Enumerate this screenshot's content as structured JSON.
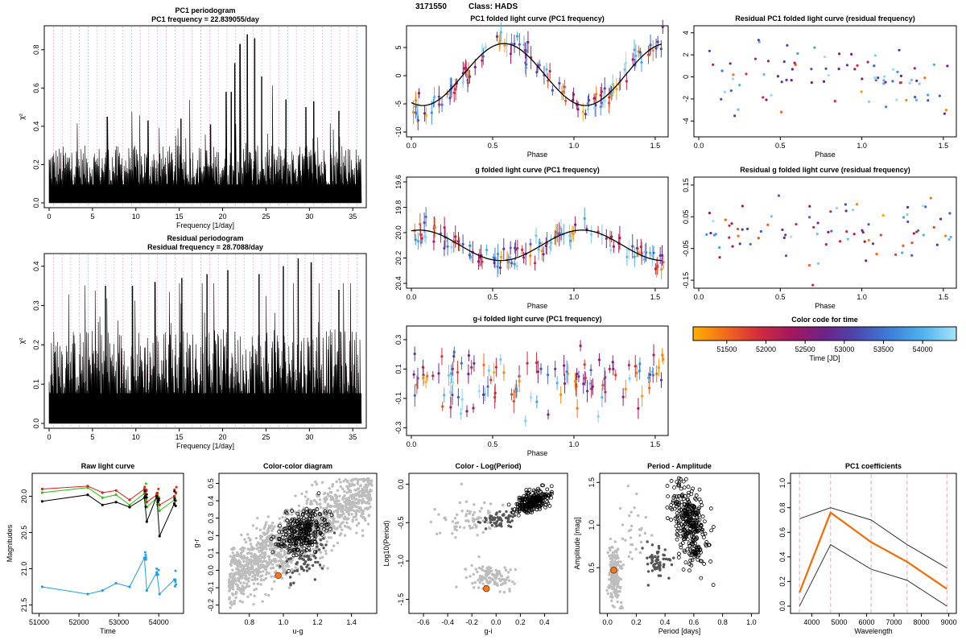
{
  "header": {
    "object_id": "3171550",
    "class_label": "Class: HADS"
  },
  "colors": {
    "time_gradient": [
      "#ffb000",
      "#f26a1b",
      "#d22c3c",
      "#a31760",
      "#6e2288",
      "#4a4ab0",
      "#3d7fd9",
      "#4fb4ee",
      "#a6e3fa"
    ],
    "gray_light": "#bdbdbd",
    "gray_dark": "#555555",
    "highlight": "#ff7a1a",
    "orange_line": "#ef6c00",
    "pink_dash": "#f2a6b8"
  },
  "chart_data": [
    {
      "id": "pc1_periodogram",
      "type": "bar",
      "title": "PC1 periodogram",
      "subtitle": "PC1 frequency = 22.839055/day",
      "xlabel": "Frequency [1/day]",
      "ylabel": "χ²",
      "xlim": [
        0,
        36
      ],
      "ylim": [
        0,
        0.9
      ],
      "xticks": [
        "0",
        "5",
        "10",
        "15",
        "20",
        "25",
        "30",
        "35"
      ],
      "yticks": [
        "0.0",
        "0.2",
        "0.4",
        "0.6",
        "0.8"
      ],
      "peaks": [
        [
          20.4,
          0.58
        ],
        [
          21.0,
          0.58
        ],
        [
          21.4,
          0.73
        ],
        [
          22.0,
          0.83
        ],
        [
          22.84,
          0.88
        ],
        [
          23.7,
          0.86
        ],
        [
          24.5,
          0.66
        ],
        [
          18.6,
          0.41
        ],
        [
          6.7,
          0.45
        ],
        [
          11.4,
          0.43
        ],
        [
          15.2,
          0.44
        ],
        [
          27.3,
          0.54
        ],
        [
          30.5,
          0.53
        ],
        [
          33.4,
          0.48
        ],
        [
          29.6,
          0.5
        ]
      ],
      "floor_max": 0.3
    },
    {
      "id": "residual_periodogram",
      "type": "bar",
      "title": "Residual periodogram",
      "subtitle": "Residual frequency = 28.7088/day",
      "xlabel": "Frequency [1/day]",
      "ylabel": "χ²",
      "xlim": [
        0,
        36
      ],
      "ylim": [
        0,
        0.42
      ],
      "xticks": [
        "0",
        "5",
        "10",
        "15",
        "20",
        "25",
        "30",
        "35"
      ],
      "yticks": [
        "0.0",
        "0.1",
        "0.2",
        "0.3",
        "0.4"
      ],
      "peaks": [
        [
          28.71,
          0.42
        ],
        [
          20.6,
          0.39
        ],
        [
          27.0,
          0.4
        ],
        [
          30.2,
          0.41
        ],
        [
          18.2,
          0.38
        ],
        [
          15.3,
          0.37
        ],
        [
          12.2,
          0.36
        ],
        [
          24.2,
          0.38
        ],
        [
          33.4,
          0.34
        ],
        [
          9.6,
          0.35
        ],
        [
          6.5,
          0.35
        ]
      ],
      "floor_max": 0.24
    },
    {
      "id": "pc1_folded",
      "type": "scatter",
      "title": "PC1 folded light curve (PC1 frequency)",
      "xlabel": "Phase",
      "ylabel": "",
      "xlim": [
        0,
        1.55
      ],
      "ylim": [
        -10,
        8
      ],
      "xticks": [
        "0.0",
        "0.5",
        "1.0",
        "1.5"
      ],
      "yticks": [
        "-10",
        "-5",
        "0",
        "5"
      ],
      "model": "sine",
      "model_params": {
        "offset": 0.2,
        "amplitude": -5.5,
        "phase_min": 0.07
      }
    },
    {
      "id": "residual_pc1_folded",
      "type": "scatter",
      "title": "Residual PC1 folded light curve (residual frequency)",
      "xlabel": "Phase",
      "ylabel": "",
      "xlim": [
        0,
        1.55
      ],
      "ylim": [
        -5,
        4.2
      ],
      "xticks": [
        "0.0",
        "0.5",
        "1.0",
        "1.5"
      ],
      "yticks": [
        "-4",
        "-2",
        "0",
        "2",
        "4"
      ]
    },
    {
      "id": "g_folded",
      "type": "scatter",
      "title": "g folded light curve (PC1 frequency)",
      "xlabel": "Phase",
      "ylabel": "",
      "xlim": [
        0,
        1.55
      ],
      "ylim": [
        20.4,
        19.6
      ],
      "y_reversed": true,
      "xticks": [
        "0.0",
        "0.5",
        "1.0",
        "1.5"
      ],
      "yticks": [
        "19.6",
        "19.8",
        "20.0",
        "20.2",
        "20.4"
      ],
      "model": "sine",
      "model_params": {
        "offset": 20.1,
        "amplitude": 0.12,
        "phase_min": 0.55
      }
    },
    {
      "id": "residual_g_folded",
      "type": "scatter",
      "title": "Residual g folded light curve (residual frequency)",
      "xlabel": "Phase",
      "ylabel": "",
      "xlim": [
        0,
        1.55
      ],
      "ylim": [
        -0.16,
        0.16
      ],
      "xticks": [
        "0.0",
        "0.5",
        "1.0",
        "1.5"
      ],
      "yticks": [
        "-0.15",
        "-0.05",
        "0.05",
        "0.15"
      ]
    },
    {
      "id": "gi_folded",
      "type": "scatter",
      "title": "g-i folded light curve (PC1 frequency)",
      "xlabel": "Phase",
      "ylabel": "",
      "xlim": [
        0,
        1.55
      ],
      "ylim": [
        -0.32,
        0.36
      ],
      "xticks": [
        "0.0",
        "0.5",
        "1.0",
        "1.5"
      ],
      "yticks": [
        "-0.3",
        "-0.1",
        "0.1",
        "0.3"
      ]
    },
    {
      "id": "time_colorbar",
      "type": "heatmap",
      "title": "Color code for time",
      "xlabel": "Time [JD]",
      "xlim": [
        51070,
        54430
      ],
      "xticks": [
        "51500",
        "52000",
        "52500",
        "53000",
        "53500",
        "54000"
      ]
    },
    {
      "id": "raw_light_curve",
      "type": "line",
      "title": "Raw light curve",
      "xlabel": "Time",
      "ylabel": "Magnitudes",
      "xlim": [
        50950,
        54500
      ],
      "ylim": [
        21.55,
        19.75
      ],
      "y_reversed": true,
      "xticks": [
        "51000",
        "52000",
        "53000",
        "54000"
      ],
      "yticks": [
        "20.0",
        "20.5",
        "21.0",
        "21.5"
      ],
      "times": [
        51080,
        52220,
        52590,
        52930,
        53270,
        53640,
        53700,
        53950,
        54020,
        54390
      ],
      "series": [
        {
          "color": "#30c010",
          "values": [
            19.95,
            19.88,
            20.02,
            19.98,
            20.12,
            19.96,
            20.15,
            20.02,
            20.2,
            20.05
          ]
        },
        {
          "color": "#d42020",
          "values": [
            19.9,
            19.86,
            19.95,
            19.92,
            20.05,
            19.9,
            20.08,
            19.98,
            20.12,
            20.0
          ]
        },
        {
          "color": "#000000",
          "values": [
            20.07,
            19.98,
            20.12,
            20.08,
            20.15,
            20.02,
            20.35,
            20.0,
            20.55,
            20.1
          ]
        },
        {
          "color": "#1ea0e8",
          "values": [
            21.25,
            21.35,
            21.3,
            21.2,
            21.25,
            20.85,
            21.3,
            21.05,
            21.35,
            21.15
          ]
        }
      ]
    },
    {
      "id": "color_color",
      "type": "scatter",
      "title": "Color-color diagram",
      "xlabel": "u-g",
      "ylabel": "g-r",
      "xlim": [
        0.65,
        1.52
      ],
      "ylim": [
        -0.22,
        0.53
      ],
      "xticks": [
        "0.8",
        "1.0",
        "1.2",
        "1.4"
      ],
      "yticks": [
        "-0.2",
        "-0.1",
        "0.0",
        "0.1",
        "0.2",
        "0.3",
        "0.4",
        "0.5"
      ],
      "highlight_point": [
        0.97,
        -0.03
      ]
    },
    {
      "id": "color_log_period",
      "type": "scatter",
      "title": "Color - Log(Period)",
      "xlabel": "g-i",
      "ylabel": "Log10(Period)",
      "xlim": [
        -0.68,
        0.55
      ],
      "ylim": [
        -1.62,
        0.08
      ],
      "xticks": [
        "-0.6",
        "-0.4",
        "-0.2",
        "0.0",
        "0.2",
        "0.4"
      ],
      "yticks": [
        "-1.5",
        "-1.0",
        "-0.5",
        "0.0"
      ],
      "highlight_point": [
        -0.08,
        -1.36
      ]
    },
    {
      "id": "period_amplitude",
      "type": "scatter",
      "title": "Period - Amplitude",
      "xlabel": "Period [days]",
      "ylabel": "Amplitude [mag]",
      "xlim": [
        -0.02,
        1.02
      ],
      "ylim": [
        0.02,
        1.55
      ],
      "xticks": [
        "0.0",
        "0.2",
        "0.4",
        "0.6",
        "0.8",
        "1.0"
      ],
      "yticks": [
        "0.5",
        "1.0",
        "1.5"
      ],
      "highlight_point": [
        0.044,
        0.47
      ]
    },
    {
      "id": "pc1_coefficients",
      "type": "line",
      "title": "PC1 coefficients",
      "xlabel": "Wavelength",
      "ylabel": "",
      "xlim": [
        3400,
        9100
      ],
      "ylim": [
        -0.02,
        1.04
      ],
      "xticks": [
        "4000",
        "5000",
        "6000",
        "7000",
        "8000",
        "9000"
      ],
      "yticks": [
        "0.0",
        "0.2",
        "0.4",
        "0.6",
        "0.8",
        "1.0"
      ],
      "wavelengths": [
        3551,
        4686,
        6166,
        7480,
        8932
      ],
      "series": [
        {
          "color": "#ef6c00",
          "values": [
            0.11,
            0.76,
            0.52,
            0.36,
            0.14
          ]
        },
        {
          "color": "#333333",
          "values": [
            0.71,
            0.8,
            0.7,
            0.5,
            0.31
          ]
        },
        {
          "color": "#333333",
          "values": [
            0.0,
            0.5,
            0.3,
            0.21,
            0.0
          ]
        }
      ]
    }
  ]
}
